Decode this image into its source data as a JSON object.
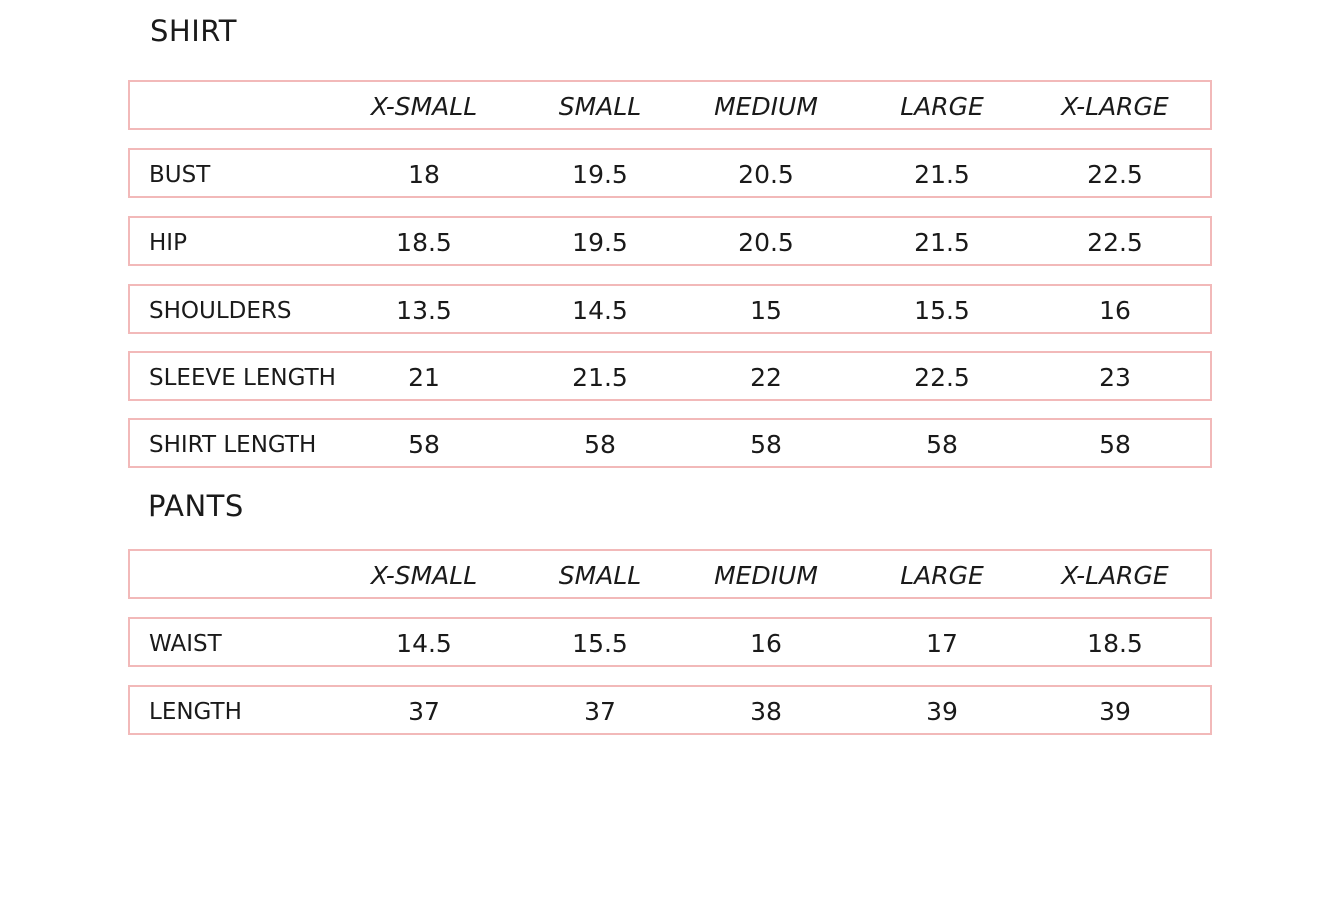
{
  "colors": {
    "border": "#f2b9b9",
    "text": "#1a1a1a"
  },
  "sizes": [
    "X-SMALL",
    "SMALL",
    "MEDIUM",
    "LARGE",
    "X-LARGE"
  ],
  "shirt": {
    "title": "SHIRT",
    "rows": [
      {
        "label": "BUST",
        "values": [
          "18",
          "19.5",
          "20.5",
          "21.5",
          "22.5"
        ]
      },
      {
        "label": "HIP",
        "values": [
          "18.5",
          "19.5",
          "20.5",
          "21.5",
          "22.5"
        ]
      },
      {
        "label": "SHOULDERS",
        "values": [
          "13.5",
          "14.5",
          "15",
          "15.5",
          "16"
        ]
      },
      {
        "label": "SLEEVE LENGTH",
        "values": [
          "21",
          "21.5",
          "22",
          "22.5",
          "23"
        ]
      },
      {
        "label": "SHIRT LENGTH",
        "values": [
          "58",
          "58",
          "58",
          "58",
          "58"
        ]
      }
    ]
  },
  "pants": {
    "title": "PANTS",
    "rows": [
      {
        "label": "WAIST",
        "values": [
          "14.5",
          "15.5",
          "16",
          "17",
          "18.5"
        ]
      },
      {
        "label": "LENGTH",
        "values": [
          "37",
          "37",
          "38",
          "39",
          "39"
        ]
      }
    ]
  }
}
